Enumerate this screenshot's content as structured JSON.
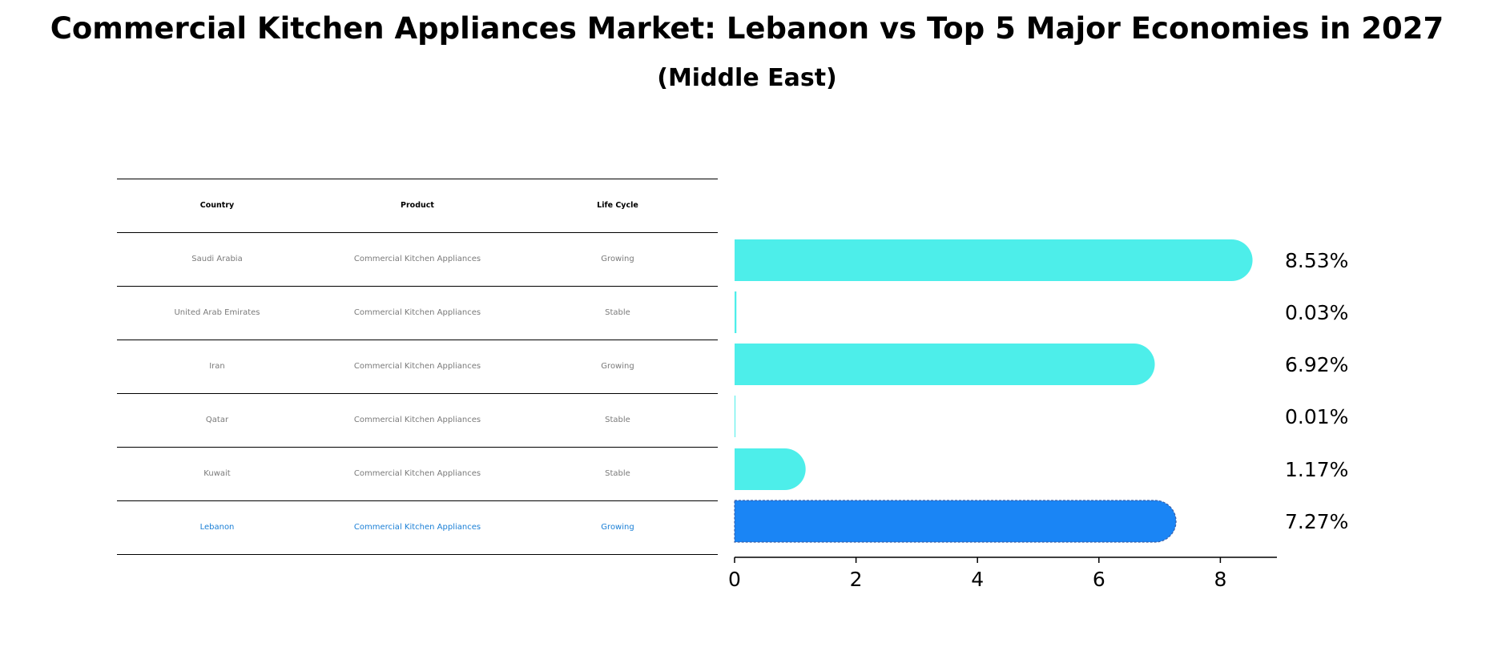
{
  "header": {
    "title": "Commercial Kitchen Appliances Market: Lebanon vs Top 5 Major Economies in 2027",
    "subtitle": "(Middle East)"
  },
  "table": {
    "columns": [
      "Country",
      "Product",
      "Life Cycle"
    ],
    "rows": [
      {
        "country": "Saudi Arabia",
        "product": "Commercial Kitchen Appliances",
        "life_cycle": "Growing"
      },
      {
        "country": "United Arab Emirates",
        "product": "Commercial Kitchen Appliances",
        "life_cycle": "Stable"
      },
      {
        "country": "Iran",
        "product": "Commercial Kitchen Appliances",
        "life_cycle": "Growing"
      },
      {
        "country": "Qatar",
        "product": "Commercial Kitchen Appliances",
        "life_cycle": "Stable"
      },
      {
        "country": "Kuwait",
        "product": "Commercial Kitchen Appliances",
        "life_cycle": "Stable"
      },
      {
        "country": "Lebanon",
        "product": "Commercial Kitchen Appliances",
        "life_cycle": "Growing"
      }
    ],
    "highlight_color": "#1a7fd6"
  },
  "chart_data": {
    "type": "bar",
    "orientation": "horizontal",
    "categories": [
      "Saudi Arabia",
      "United Arab Emirates",
      "Iran",
      "Qatar",
      "Kuwait",
      "Lebanon"
    ],
    "values": [
      8.53,
      0.03,
      6.92,
      0.01,
      1.17,
      7.27
    ],
    "value_labels": [
      "8.53%",
      "0.03%",
      "6.92%",
      "0.01%",
      "1.17%",
      "7.27%"
    ],
    "xlim": [
      0,
      9
    ],
    "xticks": [
      0,
      2,
      4,
      6,
      8
    ],
    "colors": {
      "default": "#4deeea",
      "highlight": "#1a85f5"
    },
    "highlight_category": "Lebanon",
    "grid": false
  }
}
